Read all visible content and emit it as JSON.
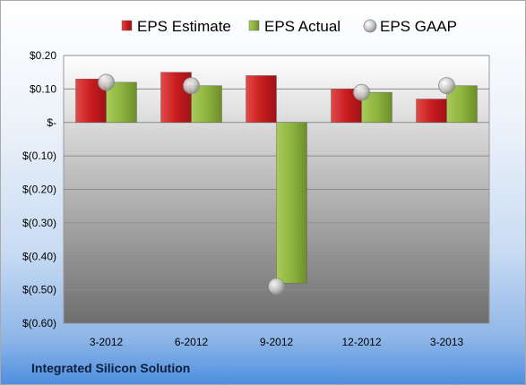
{
  "company_label": "Integrated Silicon Solution",
  "chart_data": {
    "type": "bar",
    "categories": [
      "3-2012",
      "6-2012",
      "9-2012",
      "12-2012",
      "3-2013"
    ],
    "series": [
      {
        "name": "EPS Estimate",
        "kind": "bar",
        "color": "#cc1f25",
        "values": [
          0.13,
          0.15,
          0.14,
          0.1,
          0.07
        ]
      },
      {
        "name": "EPS Actual",
        "kind": "bar",
        "color": "#8db43e",
        "values": [
          0.12,
          0.11,
          -0.48,
          0.09,
          0.11
        ]
      },
      {
        "name": "EPS GAAP",
        "kind": "marker",
        "color": "#bfbfbf",
        "values": [
          0.12,
          0.11,
          -0.49,
          0.09,
          0.11
        ]
      }
    ],
    "ylim": [
      -0.6,
      0.2
    ],
    "yticks": [
      {
        "value": 0.2,
        "label": "$0.20"
      },
      {
        "value": 0.1,
        "label": "$0.10"
      },
      {
        "value": 0.0,
        "label": "$-"
      },
      {
        "value": -0.1,
        "label": "$(0.10)"
      },
      {
        "value": -0.2,
        "label": "$(0.20)"
      },
      {
        "value": -0.3,
        "label": "$(0.30)"
      },
      {
        "value": -0.4,
        "label": "$(0.40)"
      },
      {
        "value": -0.5,
        "label": "$(0.50)"
      },
      {
        "value": -0.6,
        "label": "$(0.60)"
      }
    ],
    "grid": true,
    "legend_position": "top"
  }
}
